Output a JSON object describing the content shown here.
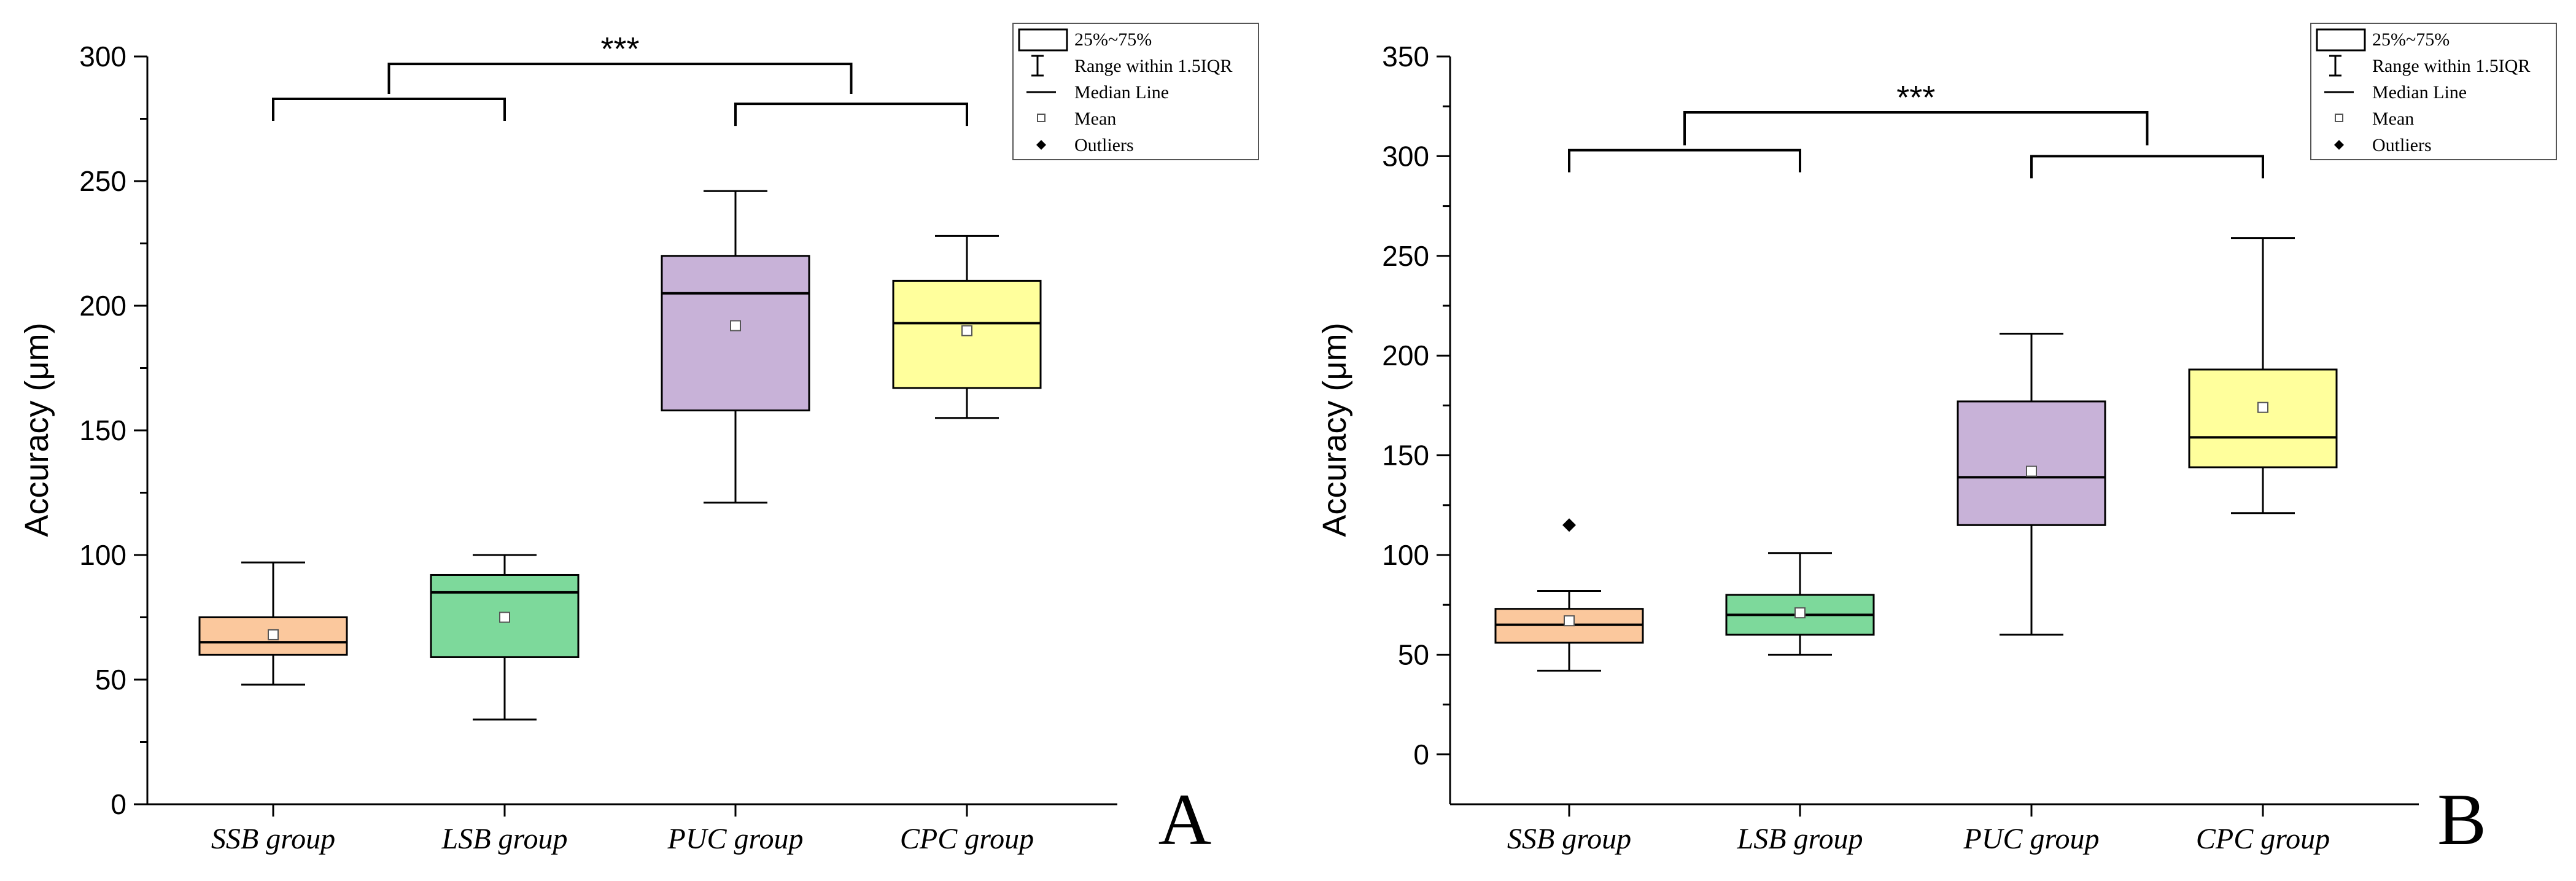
{
  "colors": {
    "SSB group": "#fbc89d",
    "LSB group": "#7dd99b",
    "PUC group": "#c8b2d8",
    "CPC group": "#ffff9c",
    "stroke": "#000000"
  },
  "legend": {
    "iqr_box": "25%~75%",
    "range": "Range within 1.5IQR",
    "median": "Median Line",
    "mean": "Mean",
    "outliers": "Outliers"
  },
  "chart_data": [
    {
      "type": "box",
      "panel": "A",
      "ylabel": "Accuracy (μm)",
      "ylim": [
        0,
        300
      ],
      "yticks": [
        0,
        50,
        100,
        150,
        200,
        250,
        300
      ],
      "categories": [
        "SSB group",
        "LSB group",
        "PUC group",
        "CPC group"
      ],
      "boxes": [
        {
          "category": "SSB group",
          "whisker_low": 48,
          "q1": 60,
          "median": 65,
          "q3": 75,
          "whisker_high": 97,
          "mean": 68,
          "outliers": []
        },
        {
          "category": "LSB group",
          "whisker_low": 34,
          "q1": 59,
          "median": 85,
          "q3": 92,
          "whisker_high": 100,
          "mean": 75,
          "outliers": []
        },
        {
          "category": "PUC group",
          "whisker_low": 121,
          "q1": 158,
          "median": 205,
          "q3": 220,
          "whisker_high": 246,
          "mean": 192,
          "outliers": []
        },
        {
          "category": "CPC group",
          "whisker_low": 155,
          "q1": 167,
          "median": 193,
          "q3": 210,
          "whisker_high": 228,
          "mean": 190,
          "outliers": []
        }
      ],
      "significance": [
        {
          "label": "***",
          "bracket_groups": [
            [
              "SSB group",
              "LSB group"
            ],
            [
              "PUC group",
              "CPC group"
            ]
          ],
          "bracket_levels": [
            283,
            281
          ],
          "top_level": 297
        }
      ],
      "legend_position": "top-right"
    },
    {
      "type": "box",
      "panel": "B",
      "ylabel": "Accuracy (μm)",
      "ylim": [
        -25,
        350
      ],
      "yticks": [
        0,
        50,
        100,
        150,
        200,
        250,
        300,
        350
      ],
      "categories": [
        "SSB group",
        "LSB group",
        "PUC group",
        "CPC group"
      ],
      "boxes": [
        {
          "category": "SSB group",
          "whisker_low": 42,
          "q1": 56,
          "median": 65,
          "q3": 73,
          "whisker_high": 82,
          "mean": 67,
          "outliers": [
            115
          ]
        },
        {
          "category": "LSB group",
          "whisker_low": 50,
          "q1": 60,
          "median": 70,
          "q3": 80,
          "whisker_high": 101,
          "mean": 71,
          "outliers": []
        },
        {
          "category": "PUC group",
          "whisker_low": 60,
          "q1": 115,
          "median": 139,
          "q3": 177,
          "whisker_high": 211,
          "mean": 142,
          "outliers": []
        },
        {
          "category": "CPC group",
          "whisker_low": 121,
          "q1": 144,
          "median": 159,
          "q3": 193,
          "whisker_high": 259,
          "mean": 174,
          "outliers": []
        }
      ],
      "significance": [
        {
          "label": "***",
          "bracket_groups": [
            [
              "SSB group",
              "LSB group"
            ],
            [
              "PUC group",
              "CPC group"
            ]
          ],
          "bracket_levels": [
            303,
            300
          ],
          "top_level": 322
        }
      ],
      "legend_position": "top-right"
    }
  ]
}
